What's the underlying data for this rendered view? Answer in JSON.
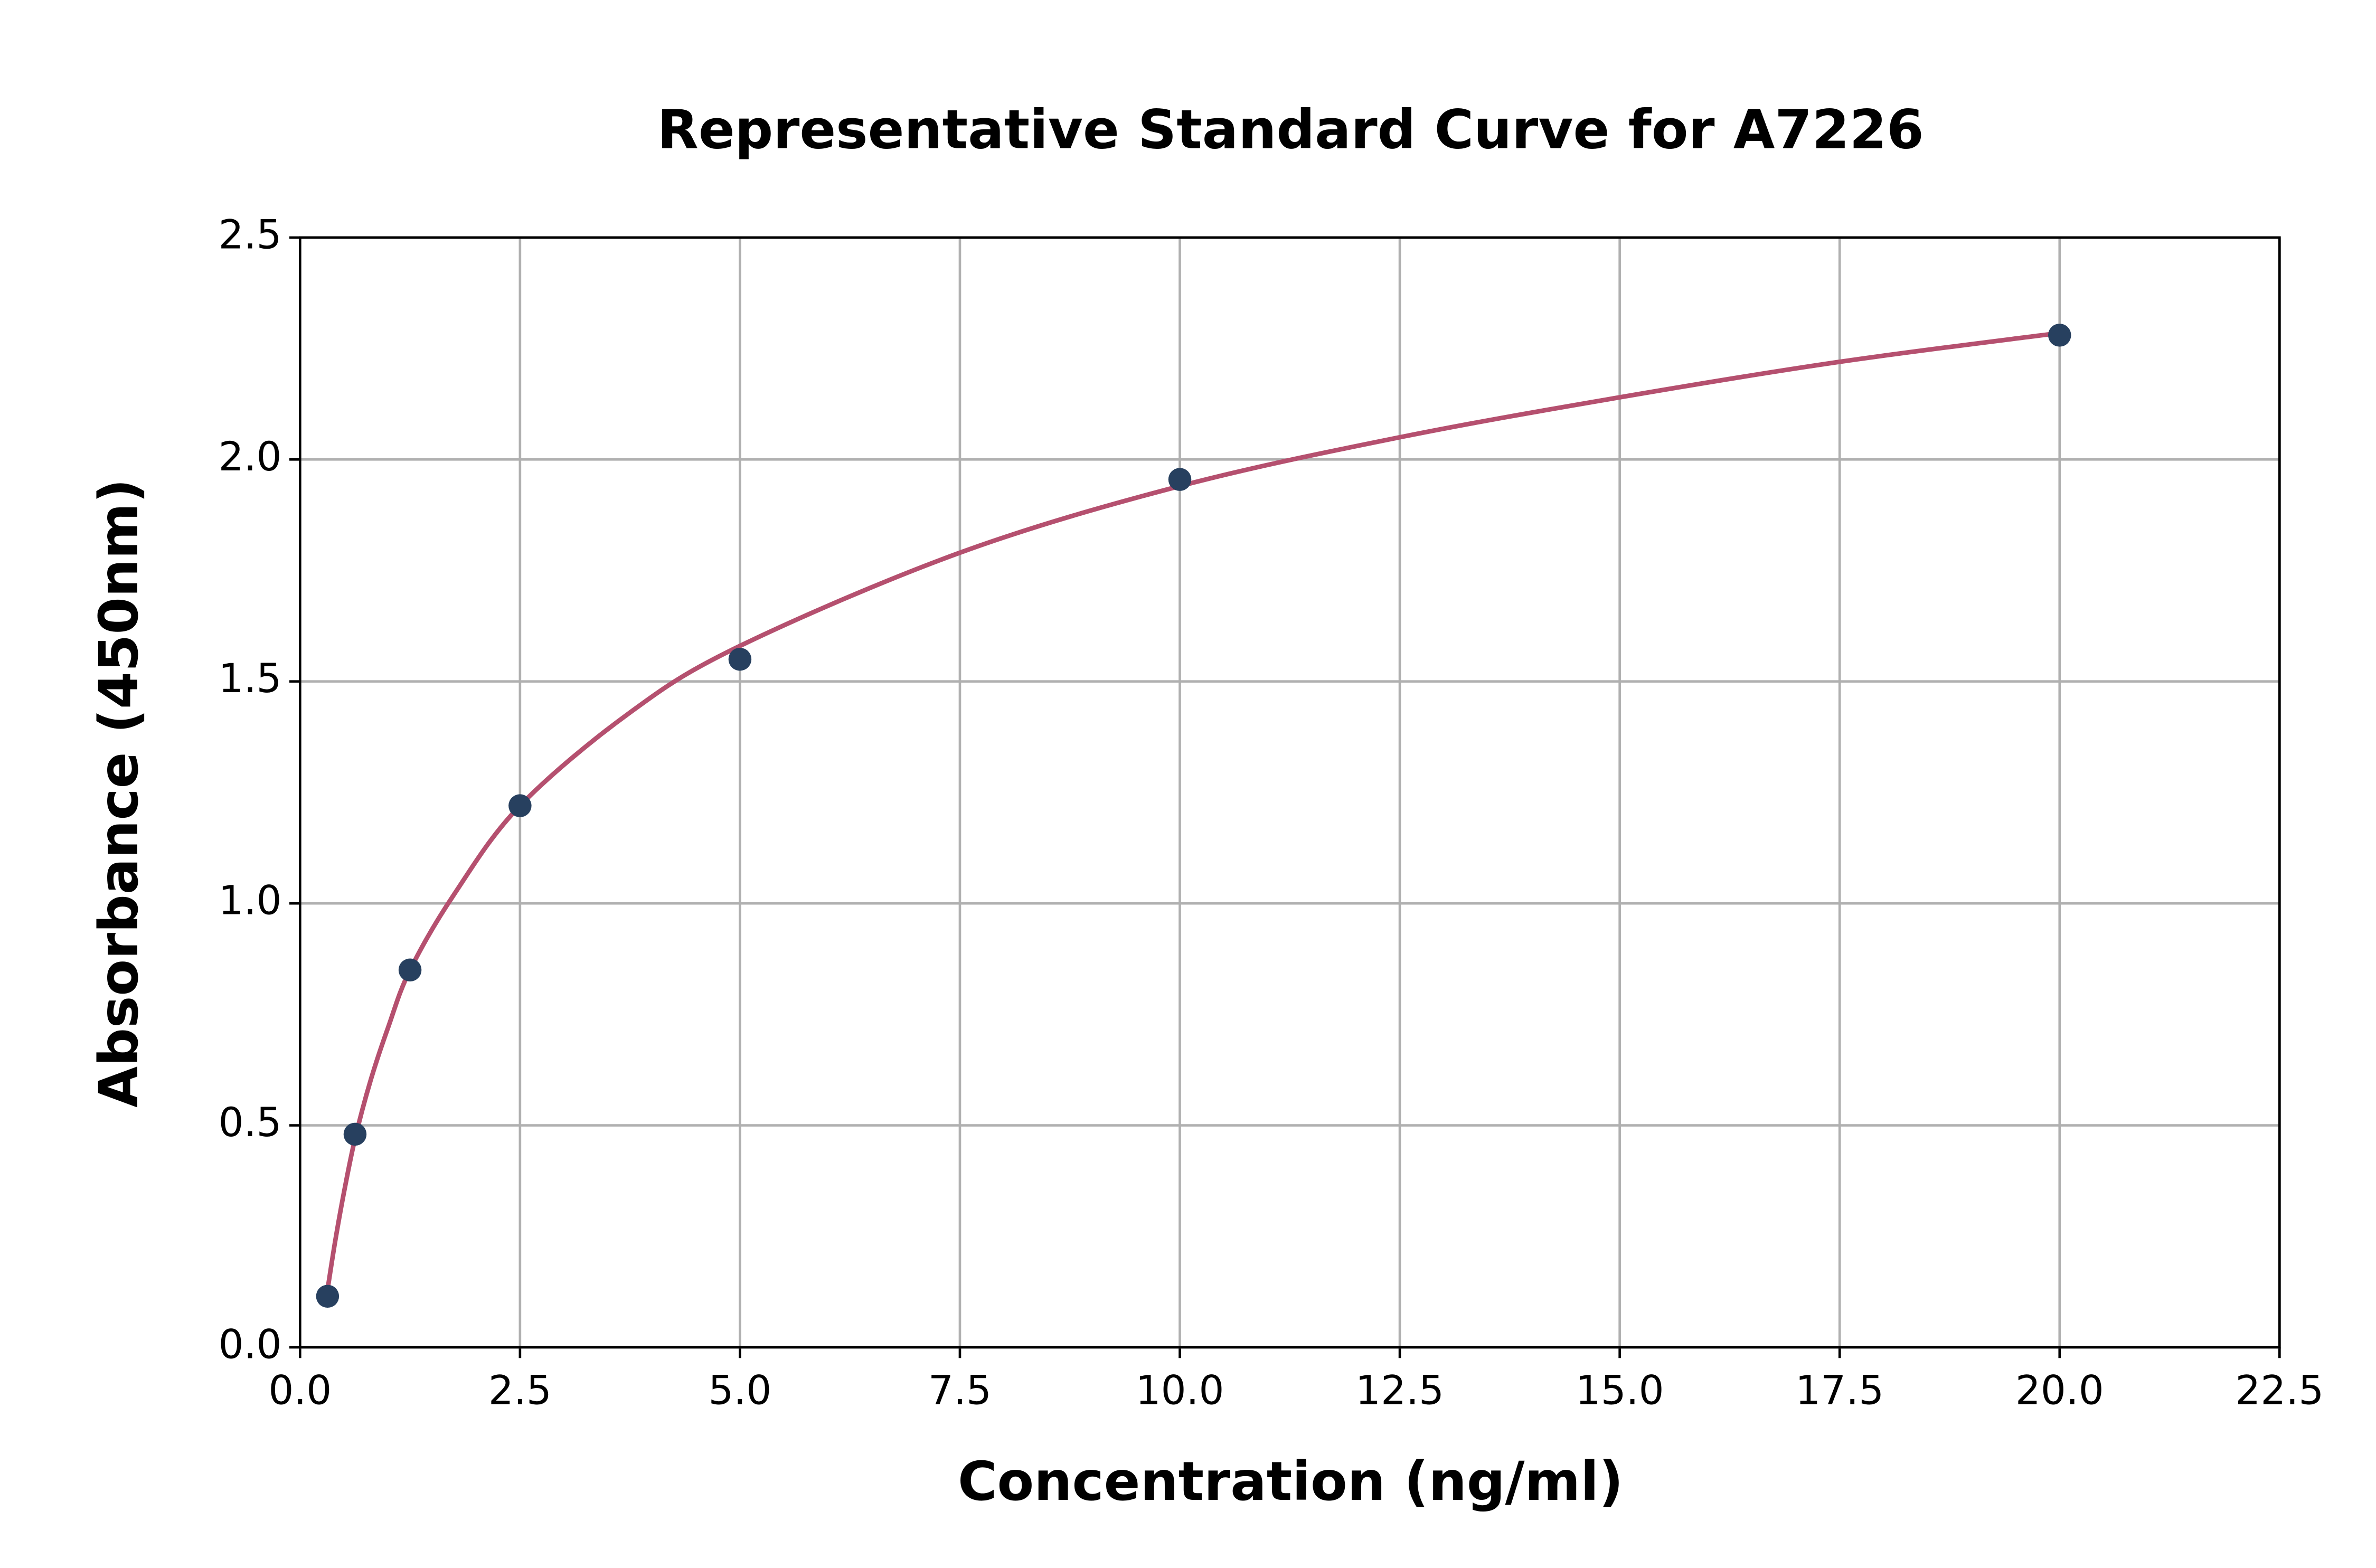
{
  "chart_data": {
    "type": "scatter",
    "title": "Representative Standard Curve for A7226",
    "x_label": "Concentration (ng/ml)",
    "y_label": "Absorbance (450nm)",
    "x": [
      0.3125,
      0.625,
      1.25,
      2.5,
      5,
      10,
      20
    ],
    "values": [
      0.115,
      0.48,
      0.85,
      1.22,
      1.55,
      1.955,
      2.28
    ],
    "color": "#27405f",
    "curve": {
      "color": "#b5506f",
      "x": [
        0.3125,
        0.4,
        0.5,
        0.625,
        0.8,
        1.0,
        1.25,
        1.75,
        2.5,
        3.75,
        5,
        7.5,
        10,
        12.5,
        15,
        17.5,
        20
      ],
      "values": [
        0.13,
        0.24,
        0.35,
        0.47,
        0.6,
        0.72,
        0.85,
        1.02,
        1.22,
        1.43,
        1.58,
        1.79,
        1.94,
        2.05,
        2.14,
        2.22,
        2.285
      ]
    },
    "xlim": [
      0,
      22.5
    ],
    "ylim": [
      0,
      2.5
    ],
    "xticks": [
      {
        "value": 0,
        "label": "0.0"
      },
      2.5,
      {
        "value": 5,
        "label": "5.0"
      },
      7.5,
      {
        "value": 10,
        "label": "10.0"
      },
      12.5,
      {
        "value": 15,
        "label": "15.0"
      },
      17.5,
      {
        "value": 20,
        "label": "20.0"
      },
      22.5
    ],
    "yticks": [
      {
        "value": 0,
        "label": "0.0"
      },
      0.5,
      {
        "value": 1,
        "label": "1.0"
      },
      1.5,
      {
        "value": 2,
        "label": "2.0"
      },
      2.5
    ],
    "grid": true
  }
}
